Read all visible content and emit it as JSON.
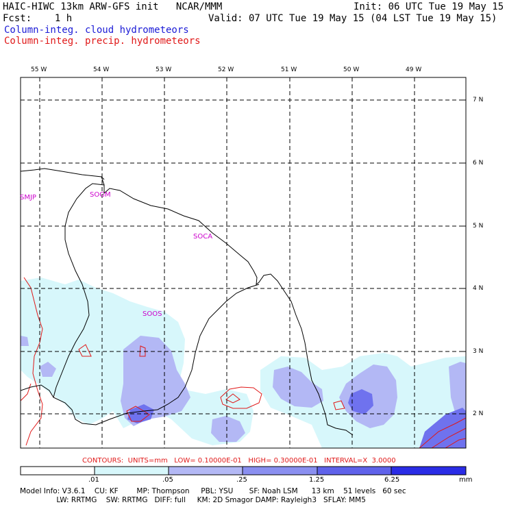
{
  "header": {
    "title_left": "HAIC-HIWC 13km ARW-GFS init   NCAR/MMM",
    "init_right": "Init: 06 UTC Tue 19 May 15",
    "fcst_label": "Fcst:    1 h",
    "valid_text": "Valid: 07 UTC Tue 19 May 15 (04 LST Tue 19 May 15)",
    "legend_cloud": "Column-integ. cloud hydrometeors",
    "legend_precip": "Column-integ. precip. hydrometeors"
  },
  "lon_labels": [
    "55 W",
    "54 W",
    "53 W",
    "52 W",
    "51 W",
    "50 W",
    "49 W"
  ],
  "lat_labels": [
    "7 N",
    "6 N",
    "5 N",
    "4 N",
    "3 N",
    "2 N"
  ],
  "stations": [
    "SMJP",
    "SOGM",
    "SOCA",
    "SOOS"
  ],
  "contours_text": "CONTOURS:  UNITS=mm   LOW= 0.10000E-01   HIGH= 0.30000E-01   INTERVAL=X  3.0000",
  "colorbar": {
    "labels": [
      ".01",
      ".05",
      ".25",
      "1.25",
      "6.25"
    ],
    "unit": "mm",
    "colors": [
      "#ffffff",
      "#d7f7fb",
      "#b3b8f5",
      "#8a8ff0",
      "#5f62ea",
      "#2a2ce6"
    ]
  },
  "footer": {
    "line1": "Model Info: V3.6.1    CU: KF        MP: Thompson     PBL: YSU       SF: Noah LSM      13 km    51 levels   60 sec",
    "line2": "                LW: RRTMG    SW: RRTMG   DIFF: full     KM: 2D Smagor DAMP: Rayleigh3   SFLAY: MM5"
  },
  "colors": {
    "cloud_light": "#d7f7fb",
    "cloud_mid": "#b3b8f5",
    "cloud_dark": "#8a8ff0",
    "cloud_darker": "#5f62ea",
    "precip_contour": "#e01818",
    "station": "#cc00cc"
  }
}
